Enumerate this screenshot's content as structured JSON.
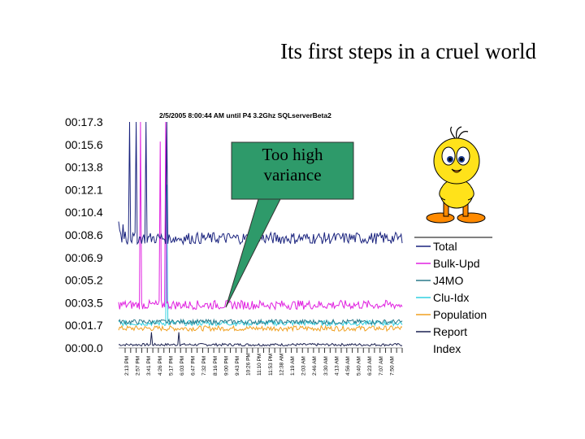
{
  "slide": {
    "title": "Its first steps in a cruel world",
    "callout_text": "Too high variance"
  },
  "chart_data": {
    "type": "line",
    "subtitle": "2/5/2005  8:00:44 AM until      P4 3.2Ghz SQLserverBeta2",
    "y_ticks": [
      "00:17.3",
      "00:15.6",
      "00:13.8",
      "00:12.1",
      "00:10.4",
      "00:08.6",
      "00:06.9",
      "00:05.2",
      "00:03.5",
      "00:01.7",
      "00:00.0"
    ],
    "ylim": [
      0,
      17.3
    ],
    "x_ticks": [
      "2:13 PM",
      "2:57 PM",
      "3:41 PM",
      "4:26 PM",
      "5:17 PM",
      "6:03 PM",
      "6:47 PM",
      "7:32 PM",
      "8:16 PM",
      "9:00 PM",
      "9:43 PM",
      "10:26 PM",
      "11:10 PM",
      "11:53 PM",
      "12:38 AM",
      "1:19 AM",
      "2:03 AM",
      "2:46 AM",
      "3:30 AM",
      "4:13 AM",
      "4:56 AM",
      "5:40 AM",
      "6:23 AM",
      "7:07 AM",
      "7:50 AM"
    ],
    "grid": false,
    "legend_position": "right",
    "series": [
      {
        "name": "Total",
        "color": "#1a237e",
        "baseline": 8.4,
        "noise": 0.45
      },
      {
        "name": "Bulk-Upd",
        "color": "#e020e0",
        "baseline": 3.3,
        "noise": 0.35
      },
      {
        "name": "J4MO",
        "color": "#2a7a8a",
        "baseline": 2.0,
        "noise": 0.18
      },
      {
        "name": "Clu-Idx",
        "color": "#30d0e0",
        "baseline": 1.9,
        "noise": 0.2
      },
      {
        "name": "Population",
        "color": "#f0a020",
        "baseline": 1.5,
        "noise": 0.2
      },
      {
        "name": "Report",
        "color": "#1a2050",
        "baseline": 0.25,
        "noise": 0.1
      },
      {
        "name": "Index",
        "color": "#ffffff",
        "baseline": 0.1,
        "noise": 0.05
      }
    ]
  },
  "mascot": {
    "icon": "tweety-bird-icon",
    "colors": {
      "body": "#ffe21a",
      "beak": "#ff8a00",
      "outline": "#000000"
    }
  }
}
